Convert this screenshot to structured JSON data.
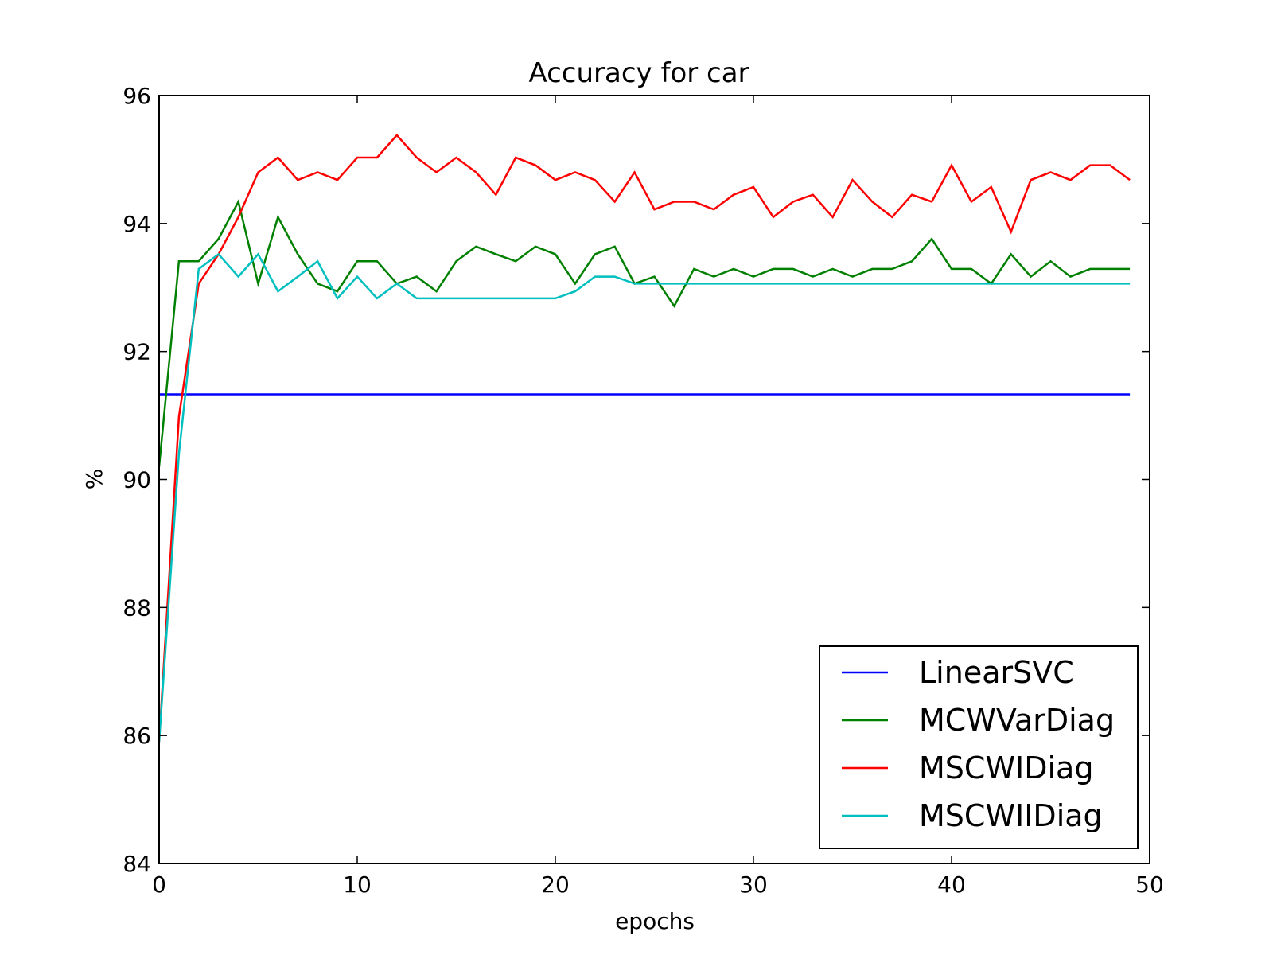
{
  "chart_data": {
    "type": "line",
    "title": "Accuracy for car",
    "xlabel": "epochs",
    "ylabel": "%",
    "xlim": [
      0,
      50
    ],
    "ylim": [
      84,
      96
    ],
    "xticks": [
      0,
      10,
      20,
      30,
      40,
      50
    ],
    "yticks": [
      84,
      86,
      88,
      90,
      92,
      94,
      96
    ],
    "grid": false,
    "legend_position": "lower-right",
    "x": [
      0,
      1,
      2,
      3,
      4,
      5,
      6,
      7,
      8,
      9,
      10,
      11,
      12,
      13,
      14,
      15,
      16,
      17,
      18,
      19,
      20,
      21,
      22,
      23,
      24,
      25,
      26,
      27,
      28,
      29,
      30,
      31,
      32,
      33,
      34,
      35,
      36,
      37,
      38,
      39,
      40,
      41,
      42,
      43,
      44,
      45,
      46,
      47,
      48,
      49
    ],
    "series": [
      {
        "name": "LinearSVC",
        "color": "#0000ff",
        "values": [
          91.33,
          91.33,
          91.33,
          91.33,
          91.33,
          91.33,
          91.33,
          91.33,
          91.33,
          91.33,
          91.33,
          91.33,
          91.33,
          91.33,
          91.33,
          91.33,
          91.33,
          91.33,
          91.33,
          91.33,
          91.33,
          91.33,
          91.33,
          91.33,
          91.33,
          91.33,
          91.33,
          91.33,
          91.33,
          91.33,
          91.33,
          91.33,
          91.33,
          91.33,
          91.33,
          91.33,
          91.33,
          91.33,
          91.33,
          91.33,
          91.33,
          91.33,
          91.33,
          91.33,
          91.33,
          91.33,
          91.33,
          91.33,
          91.33,
          91.33
        ]
      },
      {
        "name": "MCWVarDiag",
        "color": "#008000",
        "values": [
          90.2,
          93.41,
          93.41,
          93.76,
          94.34,
          93.06,
          94.1,
          93.52,
          93.06,
          92.94,
          93.41,
          93.41,
          93.06,
          93.17,
          92.94,
          93.41,
          93.64,
          93.52,
          93.41,
          93.64,
          93.52,
          93.06,
          93.52,
          93.64,
          93.06,
          93.17,
          92.71,
          93.29,
          93.17,
          93.29,
          93.17,
          93.29,
          93.29,
          93.17,
          93.29,
          93.17,
          93.29,
          93.29,
          93.41,
          93.76,
          93.29,
          93.29,
          93.06,
          93.52,
          93.17,
          93.41,
          93.17,
          93.29,
          93.29,
          93.29
        ]
      },
      {
        "name": "MSCWIDiag",
        "color": "#ff0000",
        "values": [
          85.9,
          90.98,
          93.06,
          93.52,
          94.1,
          94.8,
          95.03,
          94.68,
          94.8,
          94.68,
          95.03,
          95.03,
          95.38,
          95.03,
          94.8,
          95.03,
          94.8,
          94.45,
          95.03,
          94.91,
          94.68,
          94.8,
          94.68,
          94.34,
          94.8,
          94.22,
          94.34,
          94.34,
          94.22,
          94.45,
          94.57,
          94.1,
          94.34,
          94.45,
          94.1,
          94.68,
          94.34,
          94.1,
          94.45,
          94.34,
          94.91,
          94.34,
          94.57,
          93.87,
          94.68,
          94.8,
          94.68,
          94.91,
          94.91,
          94.68
        ]
      },
      {
        "name": "MSCWIIDiag",
        "color": "#00bfbf",
        "values": [
          85.9,
          90.4,
          93.29,
          93.52,
          93.17,
          93.52,
          92.94,
          93.17,
          93.41,
          92.83,
          93.17,
          92.83,
          93.06,
          92.83,
          92.83,
          92.83,
          92.83,
          92.83,
          92.83,
          92.83,
          92.83,
          92.94,
          93.17,
          93.17,
          93.06,
          93.06,
          93.06,
          93.06,
          93.06,
          93.06,
          93.06,
          93.06,
          93.06,
          93.06,
          93.06,
          93.06,
          93.06,
          93.06,
          93.06,
          93.06,
          93.06,
          93.06,
          93.06,
          93.06,
          93.06,
          93.06,
          93.06,
          93.06,
          93.06,
          93.06
        ]
      }
    ]
  }
}
